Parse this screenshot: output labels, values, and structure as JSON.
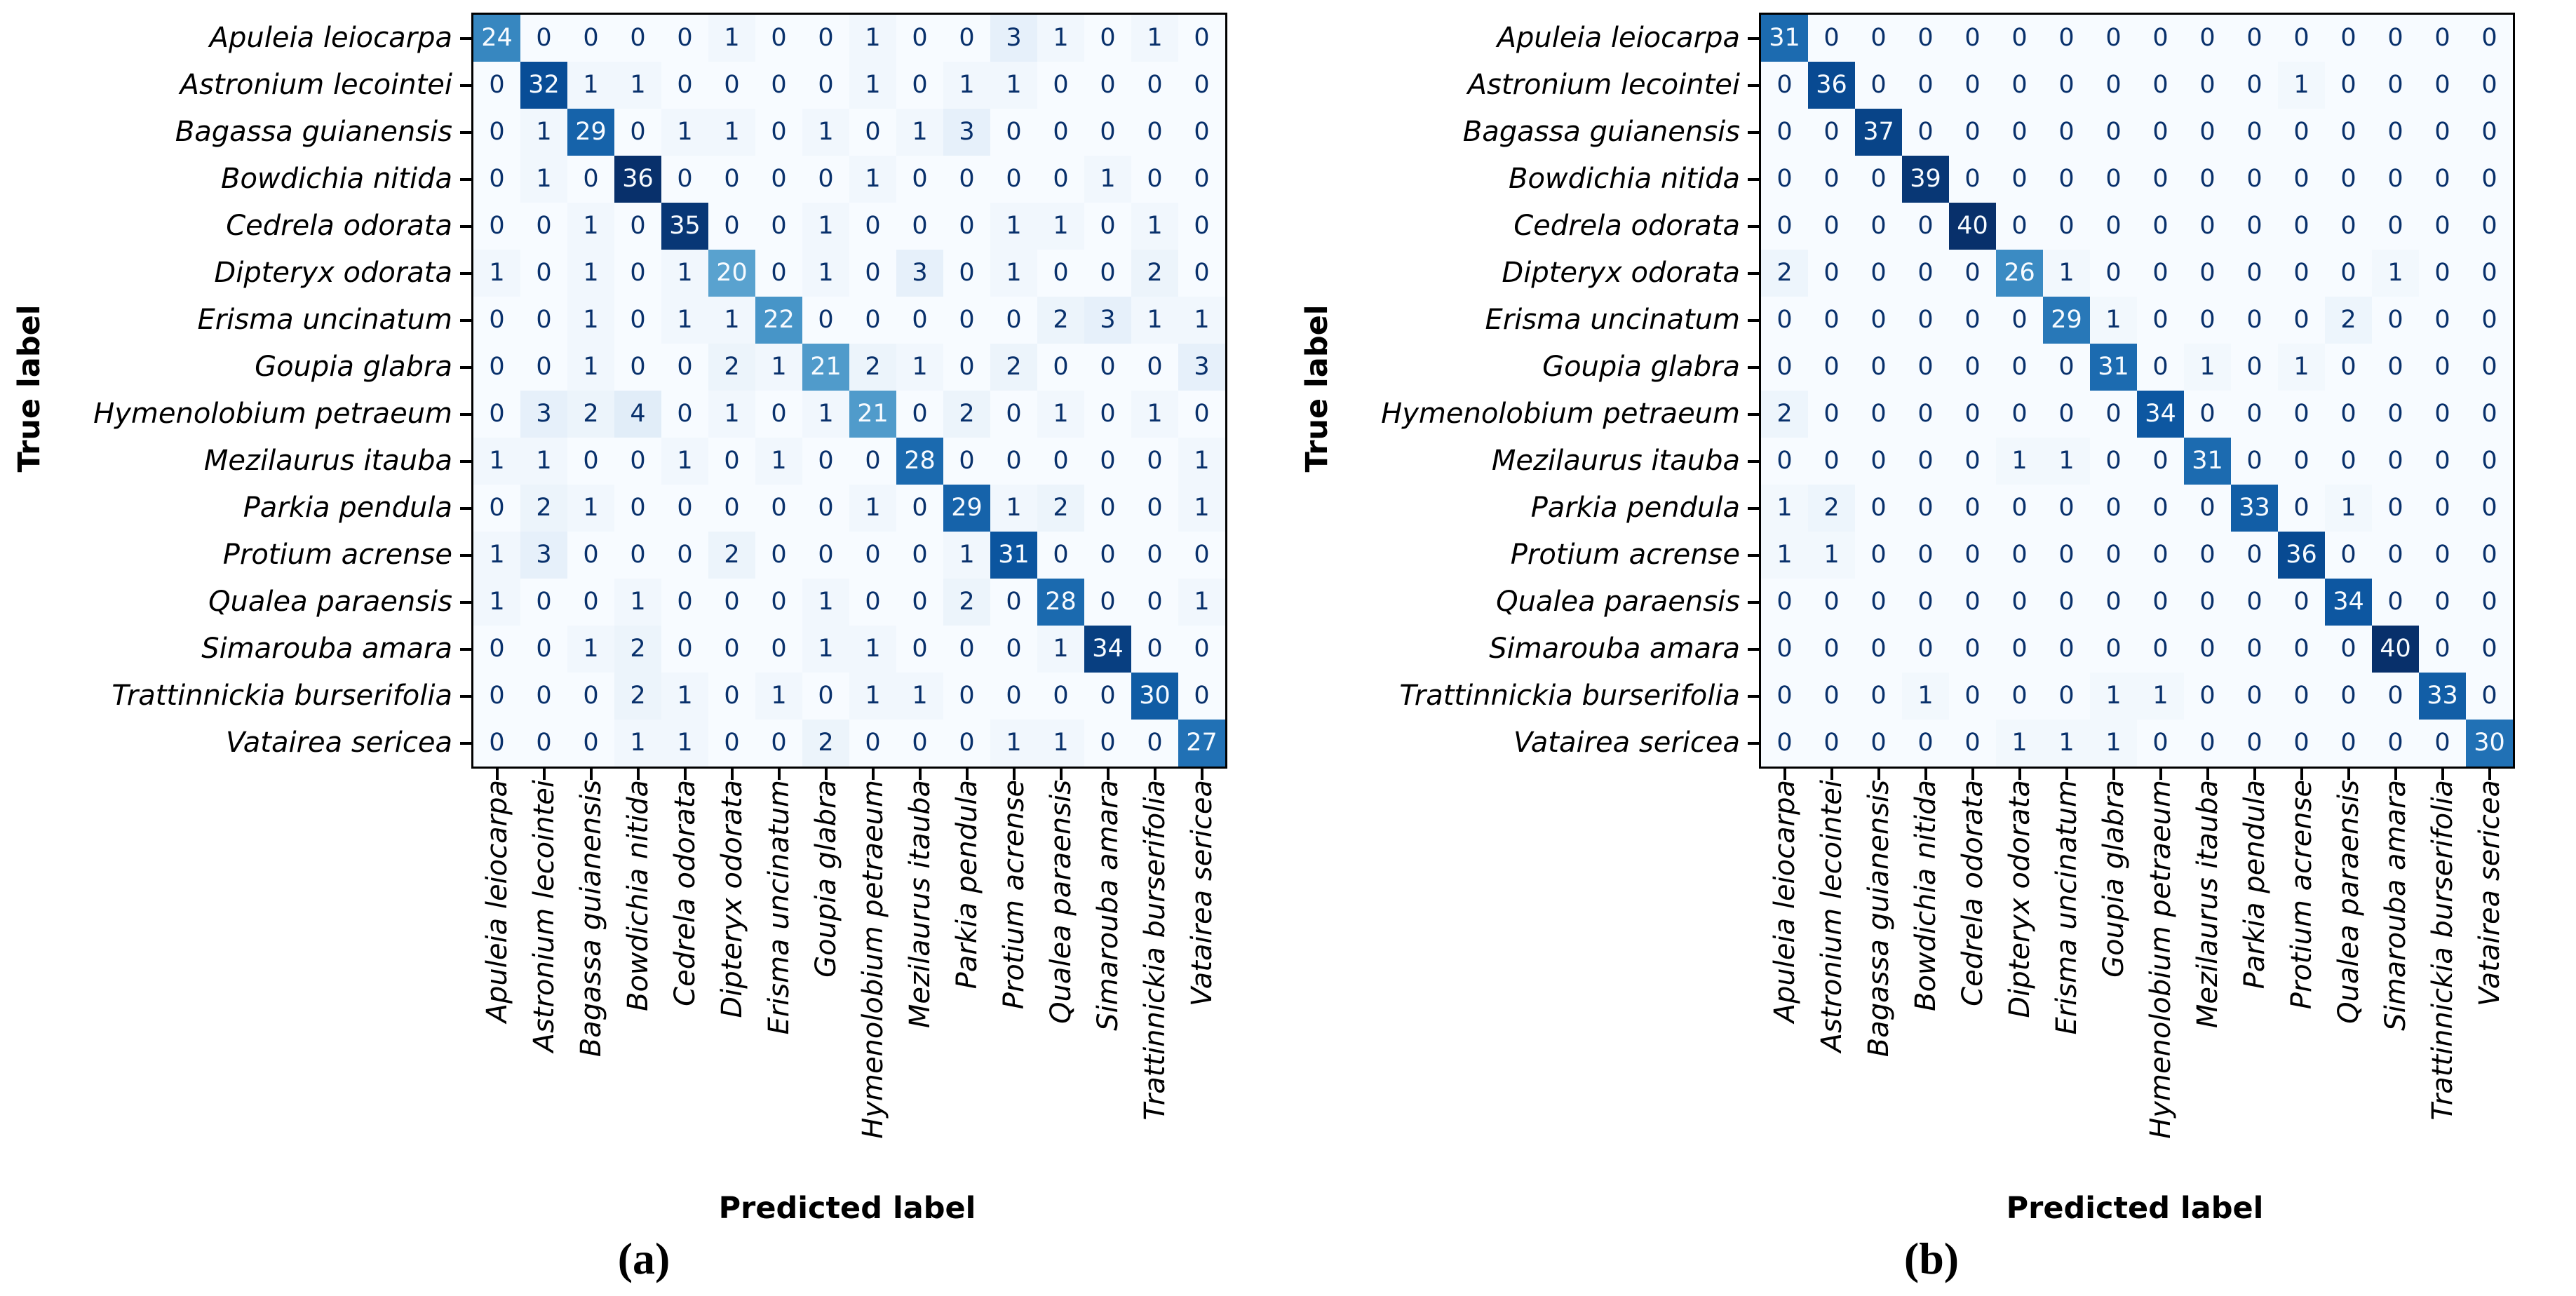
{
  "chart_data": [
    {
      "type": "heatmap",
      "caption": "(a)",
      "xlabel": "Predicted label",
      "ylabel": "True label",
      "colormap": "Blues",
      "vmin": 0,
      "vmax": 36,
      "legend": "none",
      "categories": [
        "Apuleia leiocarpa",
        "Astronium lecointei",
        "Bagassa guianensis",
        "Bowdichia nitida",
        "Cedrela odorata",
        "Dipteryx odorata",
        "Erisma uncinatum",
        "Goupia glabra",
        "Hymenolobium petraeum",
        "Mezilaurus itauba",
        "Parkia pendula",
        "Protium acrense",
        "Qualea paraensis",
        "Simarouba amara",
        "Trattinnickia burserifolia",
        "Vatairea sericea"
      ],
      "matrix": [
        [
          24,
          0,
          0,
          0,
          0,
          1,
          0,
          0,
          1,
          0,
          0,
          3,
          1,
          0,
          1,
          0
        ],
        [
          0,
          32,
          1,
          1,
          0,
          0,
          0,
          0,
          1,
          0,
          1,
          1,
          0,
          0,
          0,
          0
        ],
        [
          0,
          1,
          29,
          0,
          1,
          1,
          0,
          1,
          0,
          1,
          3,
          0,
          0,
          0,
          0,
          0
        ],
        [
          0,
          1,
          0,
          36,
          0,
          0,
          0,
          0,
          1,
          0,
          0,
          0,
          0,
          1,
          0,
          0
        ],
        [
          0,
          0,
          1,
          0,
          35,
          0,
          0,
          1,
          0,
          0,
          0,
          1,
          1,
          0,
          1,
          0
        ],
        [
          1,
          0,
          1,
          0,
          1,
          20,
          0,
          1,
          0,
          3,
          0,
          1,
          0,
          0,
          2,
          0
        ],
        [
          0,
          0,
          1,
          0,
          1,
          1,
          22,
          0,
          0,
          0,
          0,
          0,
          2,
          3,
          1,
          1
        ],
        [
          0,
          0,
          1,
          0,
          0,
          2,
          1,
          21,
          2,
          1,
          0,
          2,
          0,
          0,
          0,
          3
        ],
        [
          0,
          3,
          2,
          4,
          0,
          1,
          0,
          1,
          21,
          0,
          2,
          0,
          1,
          0,
          1,
          0
        ],
        [
          1,
          1,
          0,
          0,
          1,
          0,
          1,
          0,
          0,
          28,
          0,
          0,
          0,
          0,
          0,
          1
        ],
        [
          0,
          2,
          1,
          0,
          0,
          0,
          0,
          0,
          1,
          0,
          29,
          1,
          2,
          0,
          0,
          1
        ],
        [
          1,
          3,
          0,
          0,
          0,
          2,
          0,
          0,
          0,
          0,
          1,
          31,
          0,
          0,
          0,
          0
        ],
        [
          1,
          0,
          0,
          1,
          0,
          0,
          0,
          1,
          0,
          0,
          2,
          0,
          28,
          0,
          0,
          1
        ],
        [
          0,
          0,
          1,
          2,
          0,
          0,
          0,
          1,
          1,
          0,
          0,
          0,
          1,
          34,
          0,
          0
        ],
        [
          0,
          0,
          0,
          2,
          1,
          0,
          1,
          0,
          1,
          1,
          0,
          0,
          0,
          0,
          30,
          0
        ],
        [
          0,
          0,
          0,
          1,
          1,
          0,
          0,
          2,
          0,
          0,
          0,
          1,
          1,
          0,
          0,
          27
        ]
      ]
    },
    {
      "type": "heatmap",
      "caption": "(b)",
      "xlabel": "Predicted label",
      "ylabel": "True label",
      "colormap": "Blues",
      "vmin": 0,
      "vmax": 40,
      "legend": "none",
      "categories": [
        "Apuleia leiocarpa",
        "Astronium lecointei",
        "Bagassa guianensis",
        "Bowdichia nitida",
        "Cedrela odorata",
        "Dipteryx odorata",
        "Erisma uncinatum",
        "Goupia glabra",
        "Hymenolobium petraeum",
        "Mezilaurus itauba",
        "Parkia pendula",
        "Protium acrense",
        "Qualea paraensis",
        "Simarouba amara",
        "Trattinnickia burserifolia",
        "Vatairea sericea"
      ],
      "matrix": [
        [
          31,
          0,
          0,
          0,
          0,
          0,
          0,
          0,
          0,
          0,
          0,
          0,
          0,
          0,
          0,
          0
        ],
        [
          0,
          36,
          0,
          0,
          0,
          0,
          0,
          0,
          0,
          0,
          0,
          1,
          0,
          0,
          0,
          0
        ],
        [
          0,
          0,
          37,
          0,
          0,
          0,
          0,
          0,
          0,
          0,
          0,
          0,
          0,
          0,
          0,
          0
        ],
        [
          0,
          0,
          0,
          39,
          0,
          0,
          0,
          0,
          0,
          0,
          0,
          0,
          0,
          0,
          0,
          0
        ],
        [
          0,
          0,
          0,
          0,
          40,
          0,
          0,
          0,
          0,
          0,
          0,
          0,
          0,
          0,
          0,
          0
        ],
        [
          2,
          0,
          0,
          0,
          0,
          26,
          1,
          0,
          0,
          0,
          0,
          0,
          0,
          1,
          0,
          0
        ],
        [
          0,
          0,
          0,
          0,
          0,
          0,
          29,
          1,
          0,
          0,
          0,
          0,
          2,
          0,
          0,
          0
        ],
        [
          0,
          0,
          0,
          0,
          0,
          0,
          0,
          31,
          0,
          1,
          0,
          1,
          0,
          0,
          0,
          0
        ],
        [
          2,
          0,
          0,
          0,
          0,
          0,
          0,
          0,
          34,
          0,
          0,
          0,
          0,
          0,
          0,
          0
        ],
        [
          0,
          0,
          0,
          0,
          0,
          1,
          1,
          0,
          0,
          31,
          0,
          0,
          0,
          0,
          0,
          0
        ],
        [
          1,
          2,
          0,
          0,
          0,
          0,
          0,
          0,
          0,
          0,
          33,
          0,
          1,
          0,
          0,
          0
        ],
        [
          1,
          1,
          0,
          0,
          0,
          0,
          0,
          0,
          0,
          0,
          0,
          36,
          0,
          0,
          0,
          0
        ],
        [
          0,
          0,
          0,
          0,
          0,
          0,
          0,
          0,
          0,
          0,
          0,
          0,
          34,
          0,
          0,
          0
        ],
        [
          0,
          0,
          0,
          0,
          0,
          0,
          0,
          0,
          0,
          0,
          0,
          0,
          0,
          40,
          0,
          0
        ],
        [
          0,
          0,
          0,
          1,
          0,
          0,
          0,
          1,
          1,
          0,
          0,
          0,
          0,
          0,
          33,
          0
        ],
        [
          0,
          0,
          0,
          0,
          0,
          1,
          1,
          1,
          0,
          0,
          0,
          0,
          0,
          0,
          0,
          30
        ]
      ]
    }
  ],
  "colors": {
    "cmap_low": "#f7fbff",
    "cmap_high": "#08306b",
    "cell_text_dark": "#08306b",
    "cell_text_light": "#f7fbff",
    "axis_border": "#000000",
    "background": "#ffffff"
  }
}
